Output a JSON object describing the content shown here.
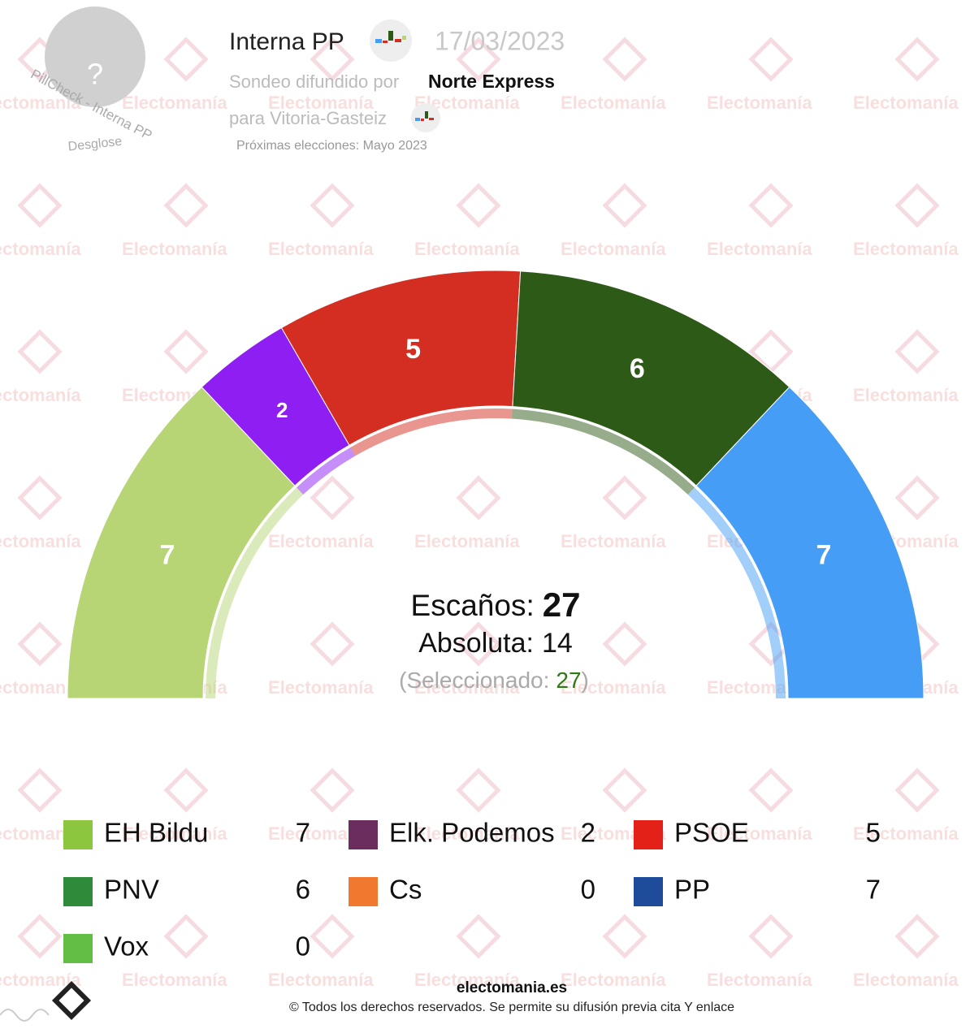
{
  "header": {
    "avatar": "?",
    "avatar_caption": "PillCheck - Interna PP",
    "avatar_sub": "Desglose",
    "title": "Interna PP",
    "date": "17/03/2023",
    "source_prefix": "Sondeo difundido por",
    "source": "Norte Express",
    "place": "para Vitoria-Gasteiz",
    "next_election": "Próximas elecciones: Mayo 2023"
  },
  "watermark": "Electomanía",
  "chart_data": {
    "type": "parliament",
    "categories": [
      "EH Bildu",
      "Elk. Podemos",
      "PSOE",
      "PNV",
      "Cs",
      "PP",
      "Vox"
    ],
    "values": [
      7,
      2,
      5,
      6,
      0,
      7,
      0
    ],
    "colors": [
      "#b8d576",
      "#8e1ef2",
      "#d42e22",
      "#2d5a17",
      "#f0782f",
      "#459df6",
      "#63be46"
    ],
    "icon_colors": [
      "#8cc63f",
      "#6a2d5e",
      "#e32119",
      "#2f8a3a",
      "#f0782f",
      "#1e4b9a",
      "#63be46"
    ],
    "seats_label": "Escaños:",
    "seats_total": 27,
    "majority_label": "Absoluta:",
    "majority": 14,
    "selected_label": "(Seleccionado:",
    "selected": 27,
    "selected_close": ")"
  },
  "footer": {
    "site": "electomania.es",
    "copyright": "© Todos los derechos reservados. Se permite su difusión previa cita Y enlace"
  }
}
